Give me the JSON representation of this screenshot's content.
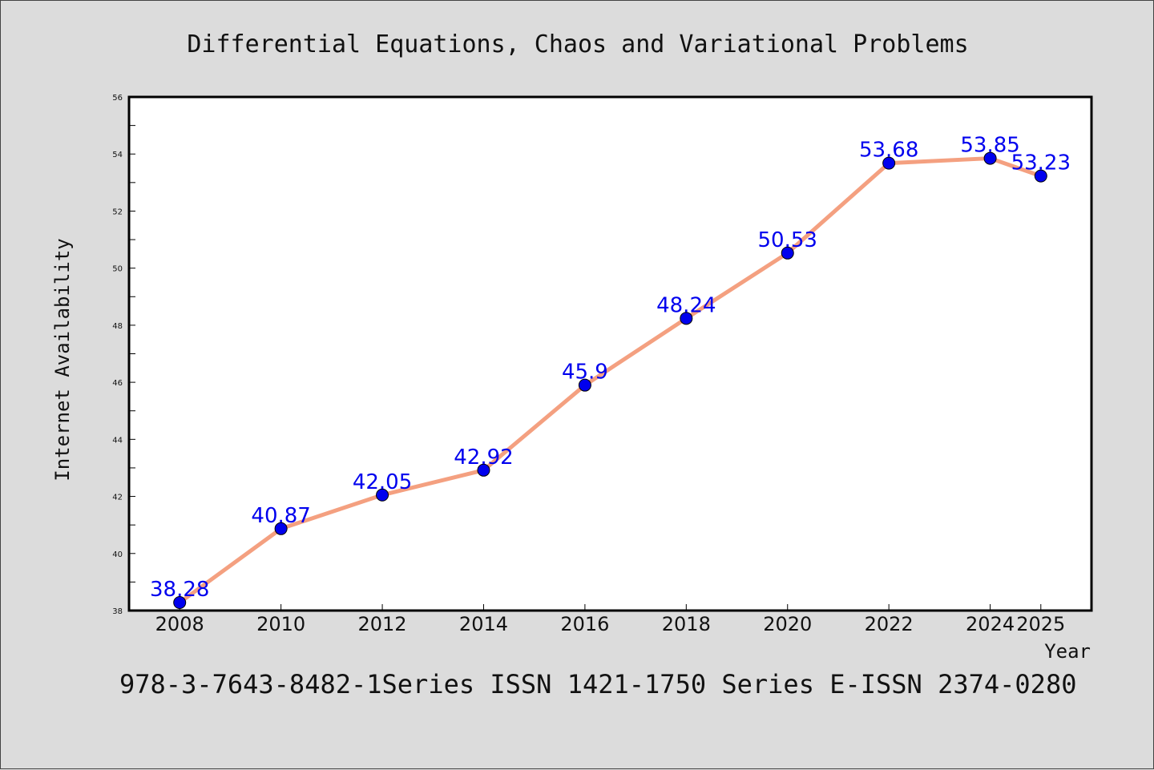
{
  "chart_data": {
    "type": "line",
    "title": "Differential Equations, Chaos and Variational Problems",
    "xlabel": "Year",
    "ylabel": "Internet Availability",
    "x": [
      2008,
      2010,
      2012,
      2014,
      2016,
      2018,
      2020,
      2022,
      2024,
      2025
    ],
    "series": [
      {
        "values": [
          38.28,
          40.87,
          42.05,
          42.92,
          45.9,
          48.24,
          50.53,
          53.68,
          53.85,
          53.23
        ],
        "labels": [
          "38.28",
          "40.87",
          "42.05",
          "42.92",
          "45.9",
          "48.24",
          "50.53",
          "53.68",
          "53.85",
          "53.23"
        ],
        "line_color": "#f4a080",
        "marker_color": "#0000ee",
        "label_color": "#0000ee"
      }
    ],
    "ylim": [
      38,
      56
    ],
    "yticks": [
      "38",
      "40",
      "42",
      "44",
      "46",
      "48",
      "50",
      "52",
      "54",
      "56"
    ],
    "xticks": [
      "2008",
      "2010",
      "2012",
      "2014",
      "2016",
      "2018",
      "2020",
      "2022",
      "2024",
      "2025"
    ],
    "grid": false,
    "legend": "none"
  },
  "footer": "978-3-7643-8482-1Series ISSN 1421-1750 Series E-ISSN 2374-0280"
}
